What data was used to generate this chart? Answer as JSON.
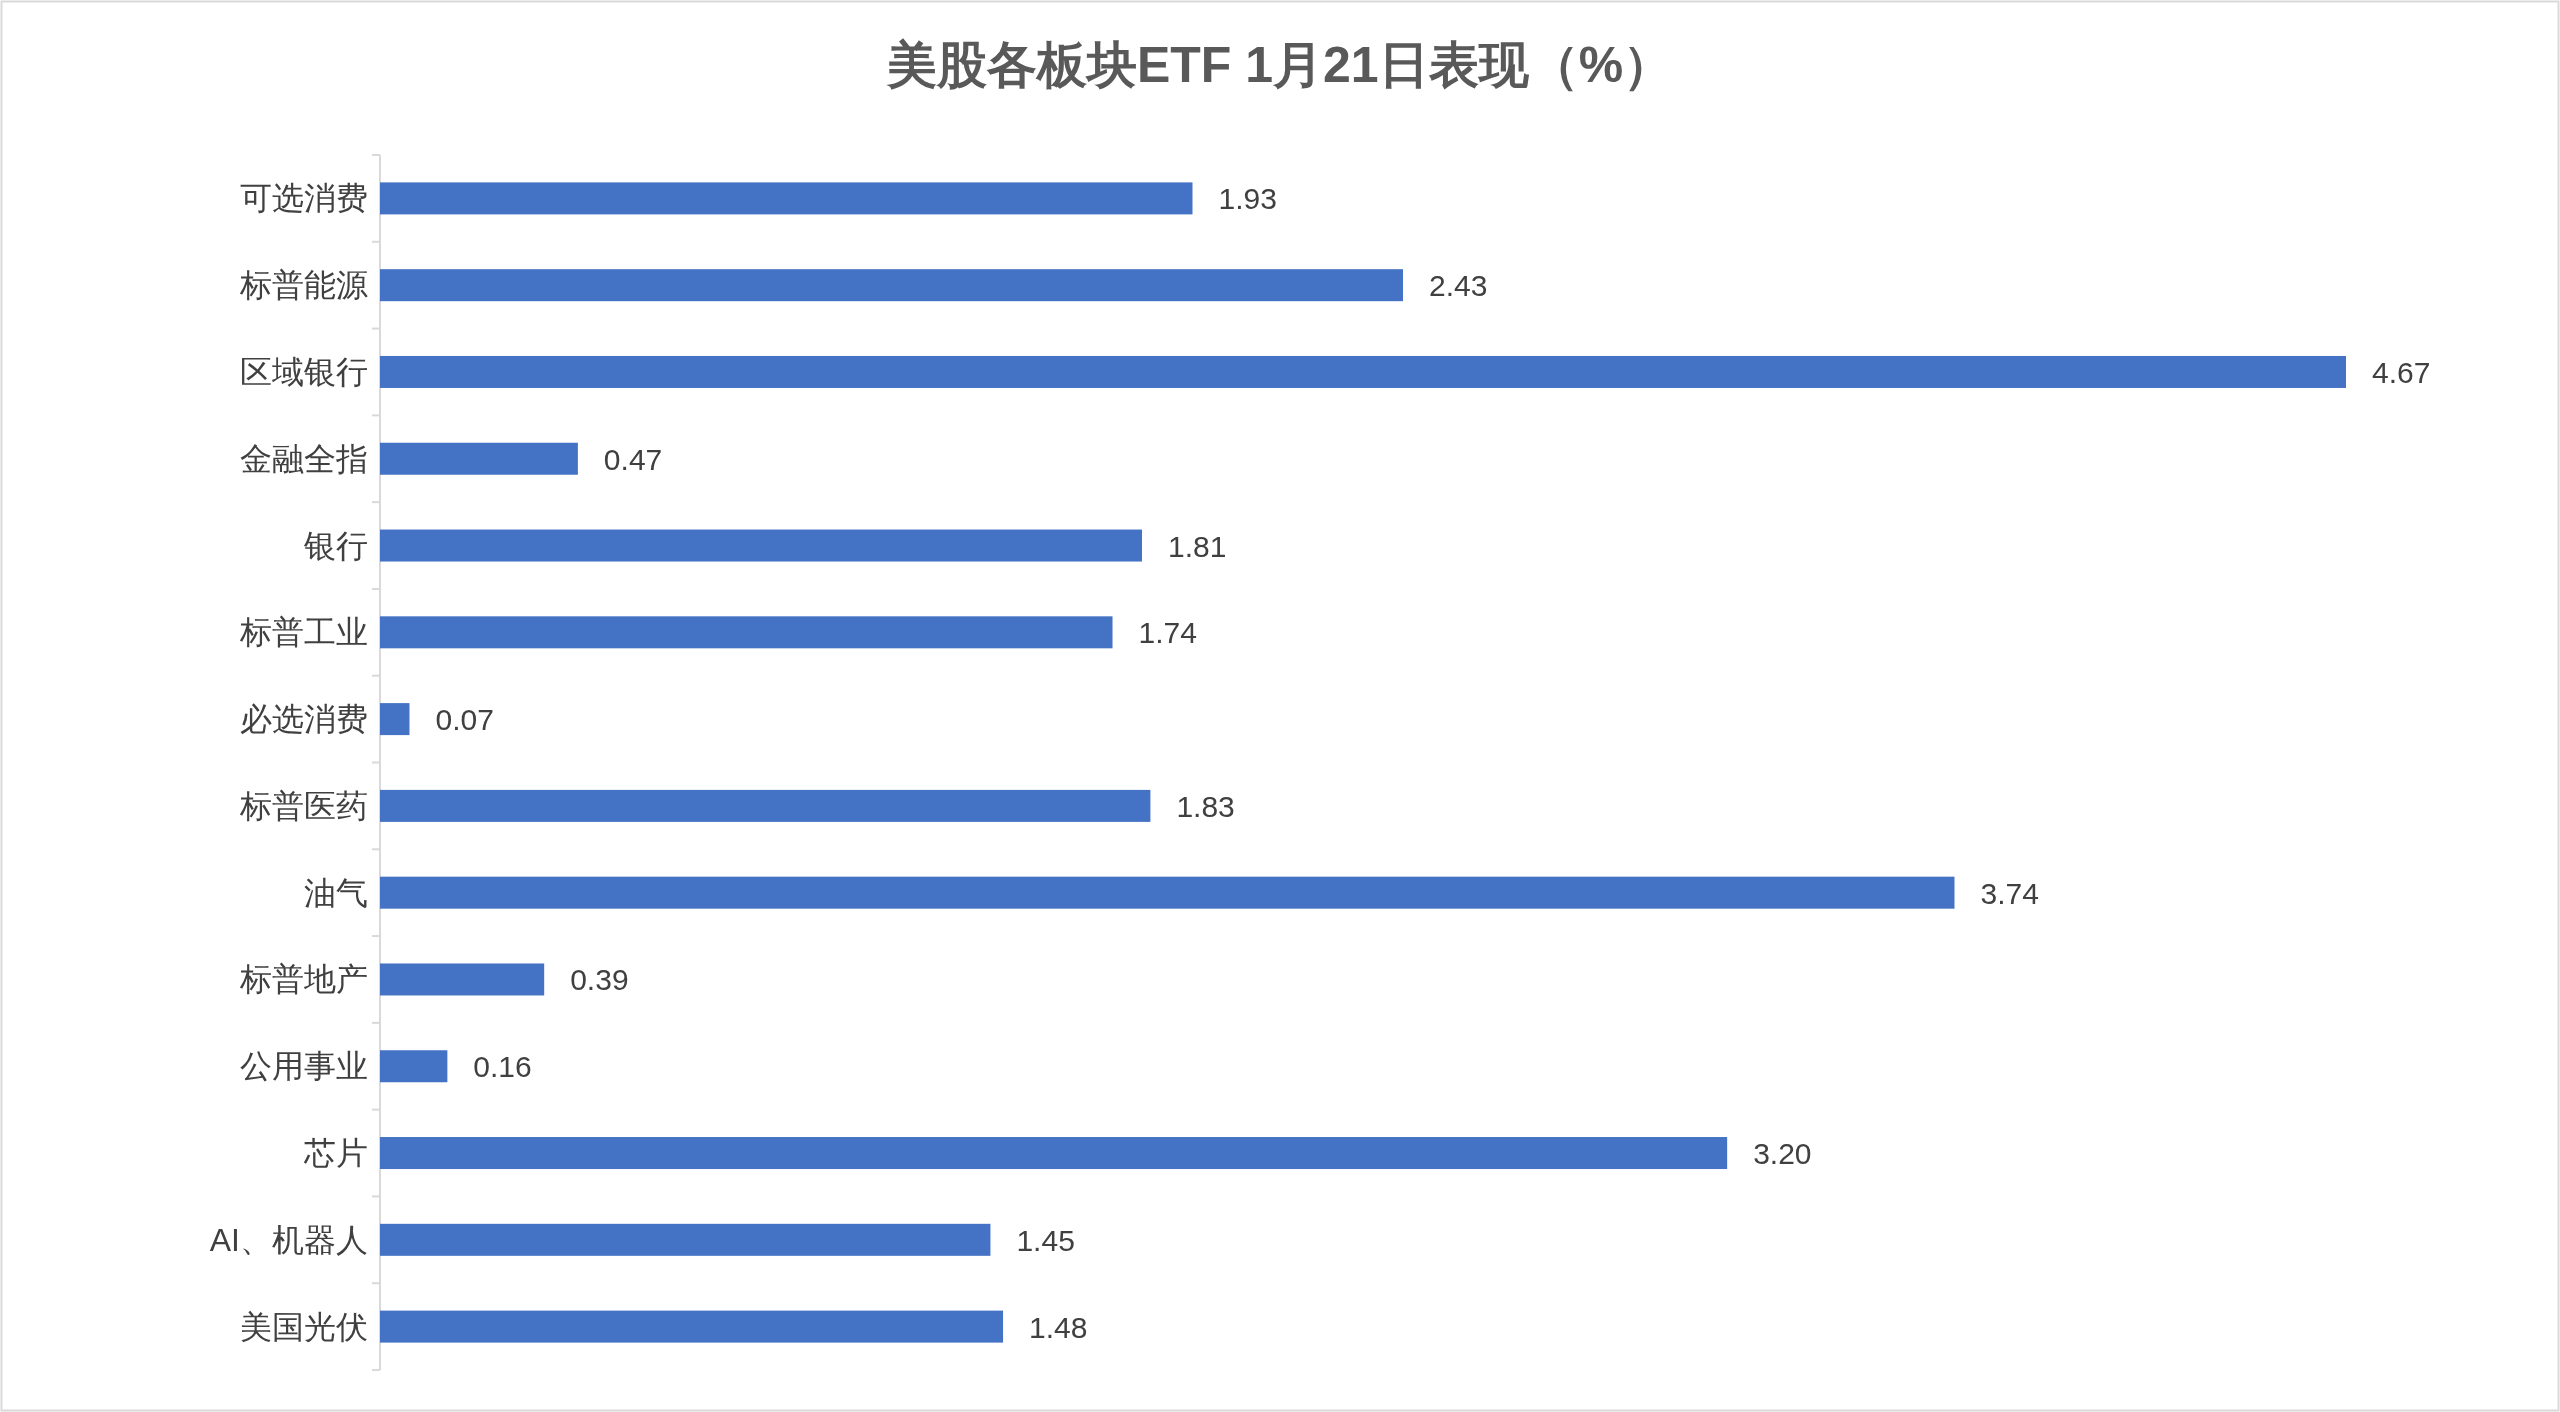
{
  "chart_data": {
    "type": "bar",
    "orientation": "horizontal",
    "title": "美股各板块ETF  1月21日表现（%）",
    "categories": [
      "可选消费",
      "标普能源",
      "区域银行",
      "金融全指",
      "银行",
      "标普工业",
      "必选消费",
      "标普医药",
      "油气",
      "标普地产",
      "公用事业",
      "芯片",
      "AI、机器人",
      "美国光伏"
    ],
    "values": [
      1.93,
      2.43,
      4.67,
      0.47,
      1.81,
      1.74,
      0.07,
      1.83,
      3.74,
      0.39,
      0.16,
      3.2,
      1.45,
      1.48
    ],
    "value_labels": [
      "1.93",
      "2.43",
      "4.67",
      "0.47",
      "1.81",
      "1.74",
      "0.07",
      "1.83",
      "3.74",
      "0.39",
      "0.16",
      "3.20",
      "1.45",
      "1.48"
    ],
    "color": "#4472c4",
    "tick_labels": "y"
  }
}
